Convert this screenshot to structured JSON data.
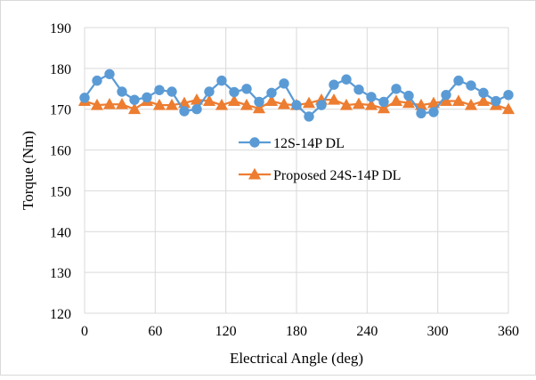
{
  "chart_data": {
    "type": "line",
    "title": "",
    "xlabel": "Electrical Angle (deg)",
    "ylabel": "Torque (Nm)",
    "xlim": [
      0,
      360
    ],
    "ylim": [
      120,
      190
    ],
    "xticks": [
      0,
      60,
      120,
      180,
      240,
      300,
      360
    ],
    "yticks": [
      120,
      130,
      140,
      150,
      160,
      170,
      180,
      190
    ],
    "grid": true,
    "legend_position": "center-left",
    "series": [
      {
        "name": "12S-14P DL",
        "color": "#5B9BD5",
        "marker": "circle",
        "x": [
          0,
          10.59,
          21.18,
          31.76,
          42.35,
          52.94,
          63.53,
          74.12,
          84.71,
          95.29,
          105.88,
          116.47,
          127.06,
          137.65,
          148.24,
          158.82,
          169.41,
          180,
          190.59,
          201.18,
          211.76,
          222.35,
          232.94,
          243.53,
          254.12,
          264.71,
          275.29,
          285.88,
          296.47,
          307.06,
          317.65,
          328.24,
          338.82,
          349.41,
          360
        ],
        "y": [
          172.8,
          177.0,
          178.6,
          174.3,
          172.3,
          172.9,
          174.7,
          174.3,
          169.5,
          170.0,
          174.3,
          177.0,
          174.2,
          175.0,
          171.8,
          174.0,
          176.3,
          171.0,
          168.2,
          171.0,
          176.0,
          177.3,
          174.8,
          173.0,
          171.8,
          175.0,
          173.3,
          169.0,
          169.3,
          173.5,
          177.0,
          175.8,
          174.0,
          172.0,
          173.5
        ]
      },
      {
        "name": "Proposed 24S-14P DL",
        "color": "#ED7D31",
        "marker": "triangle",
        "x": [
          0,
          10.59,
          21.18,
          31.76,
          42.35,
          52.94,
          63.53,
          74.12,
          84.71,
          95.29,
          105.88,
          116.47,
          127.06,
          137.65,
          148.24,
          158.82,
          169.41,
          180,
          190.59,
          201.18,
          211.76,
          222.35,
          232.94,
          243.53,
          254.12,
          264.71,
          275.29,
          285.88,
          296.47,
          307.06,
          317.65,
          328.24,
          338.82,
          349.41,
          360
        ],
        "y": [
          172.0,
          171.0,
          171.2,
          171.2,
          170.0,
          172.0,
          171.0,
          171.0,
          171.5,
          172.3,
          172.0,
          171.0,
          172.0,
          171.0,
          170.2,
          172.0,
          171.2,
          171.0,
          171.5,
          172.3,
          172.3,
          171.0,
          171.3,
          171.0,
          170.2,
          172.0,
          171.5,
          171.0,
          171.5,
          172.0,
          172.0,
          171.0,
          172.0,
          171.0,
          170.0
        ]
      }
    ]
  }
}
